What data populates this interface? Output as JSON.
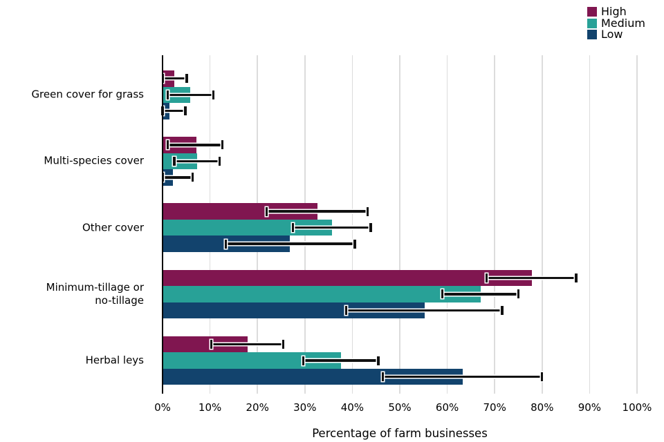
{
  "chart_data": {
    "type": "bar",
    "orientation": "horizontal",
    "title": "",
    "xlabel": "Percentage of farm businesses",
    "ylabel": "",
    "xlim": [
      0,
      100
    ],
    "x_ticks": [
      "0%",
      "10%",
      "20%",
      "30%",
      "40%",
      "50%",
      "60%",
      "70%",
      "80%",
      "90%",
      "100%"
    ],
    "grid": "vertical",
    "grid_color": "#dcdcdc",
    "background_color": "#ffffff",
    "error_bar_color": "#111111",
    "legend_position": "top-right",
    "legend_entries": [
      "High",
      "Medium",
      "Low"
    ],
    "categories": [
      "Green cover for grass",
      "Multi-species cover",
      "Other cover",
      "Minimum-tillage or\nno-tillage",
      "Herbal leys"
    ],
    "series": [
      {
        "name": "High",
        "color": "#801650",
        "values": [
          2.5,
          7.1,
          32.7,
          77.8,
          18.0
        ],
        "error_low": [
          0.1,
          1.1,
          21.9,
          68.3,
          10.3
        ],
        "error_high": [
          5.1,
          12.6,
          43.2,
          87.2,
          25.4
        ]
      },
      {
        "name": "Medium",
        "color": "#28A197",
        "values": [
          5.9,
          7.3,
          35.7,
          67.1,
          37.6
        ],
        "error_low": [
          1.1,
          2.5,
          27.5,
          59.0,
          29.7
        ],
        "error_high": [
          10.7,
          12.0,
          43.9,
          75.0,
          45.5
        ]
      },
      {
        "name": "Low",
        "color": "#12436D",
        "values": [
          1.5,
          2.2,
          26.8,
          55.2,
          63.2
        ],
        "error_low": [
          0.0,
          0.1,
          13.3,
          38.7,
          46.4
        ],
        "error_high": [
          4.8,
          6.3,
          40.5,
          71.6,
          80.0
        ]
      }
    ]
  }
}
